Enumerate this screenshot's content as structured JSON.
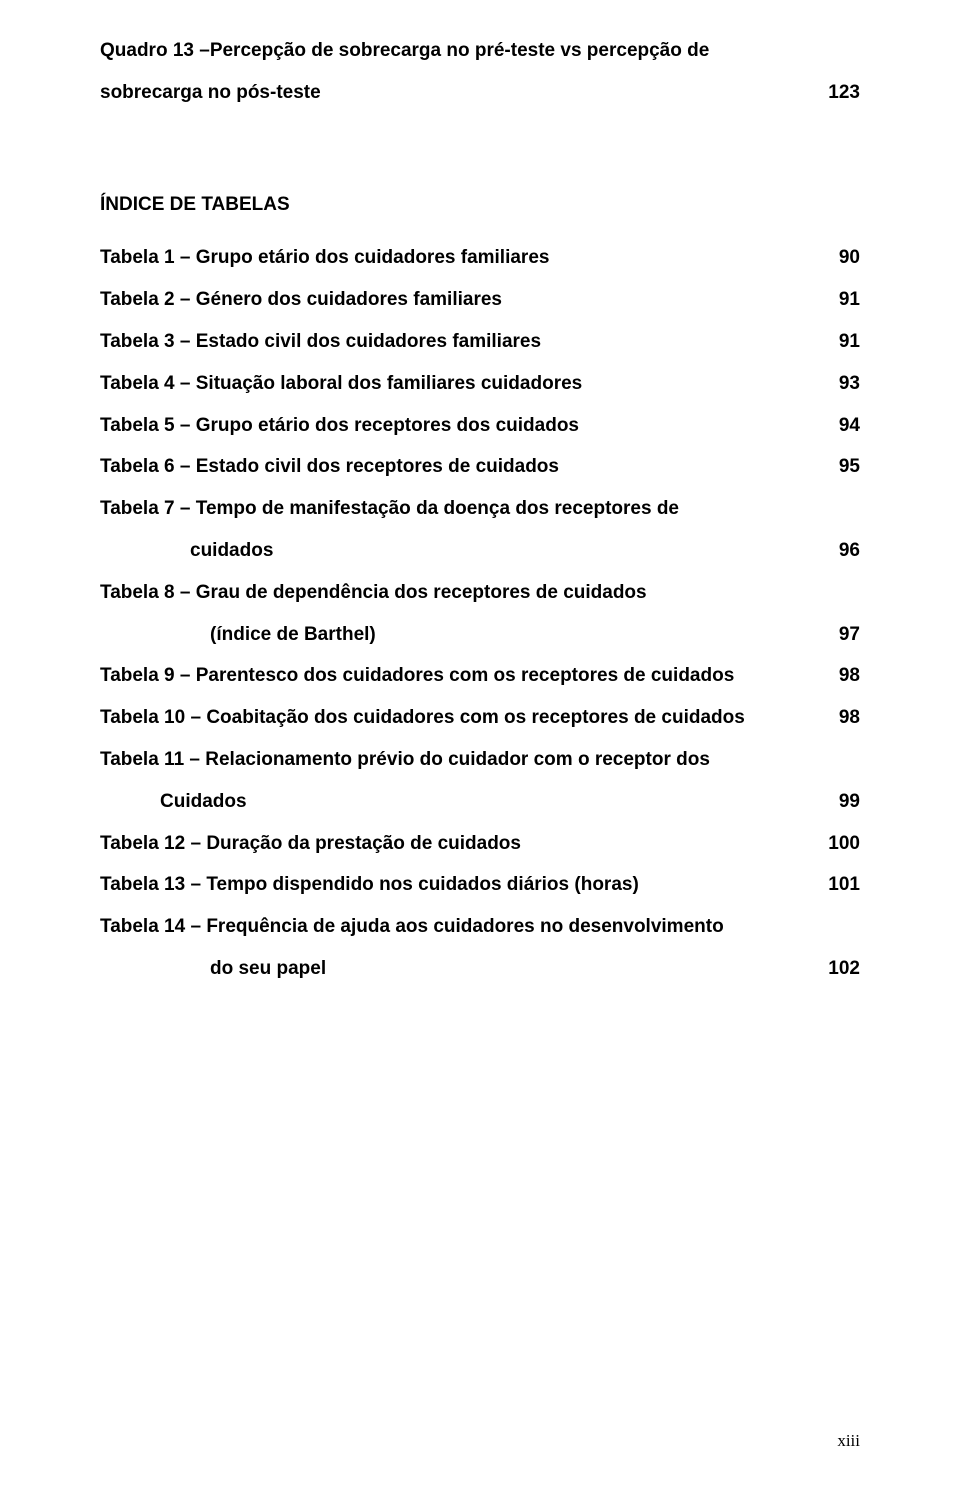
{
  "quadro13": {
    "line1": "Quadro 13 –Percepção de sobrecarga no pré-teste  vs percepção de",
    "line2": "sobrecarga no pós-teste",
    "page": "123"
  },
  "section_title": "ÍNDICE DE TABELAS",
  "tabelas": {
    "t1": {
      "label": "Tabela 1 – Grupo etário dos cuidadores familiares",
      "page": "90"
    },
    "t2": {
      "label": "Tabela 2 – Género dos cuidadores familiares",
      "page": "91"
    },
    "t3": {
      "label": "Tabela 3 – Estado civil dos cuidadores familiares",
      "page": "91"
    },
    "t4": {
      "label": "Tabela 4 – Situação laboral dos familiares cuidadores",
      "page": "93"
    },
    "t5": {
      "label": "Tabela 5 – Grupo etário dos receptores dos cuidados",
      "page": "94"
    },
    "t6": {
      "label": "Tabela 6 – Estado civil dos receptores de cuidados",
      "page": "95"
    },
    "t7": {
      "line1": "Tabela 7 – Tempo de manifestação da doença dos receptores de",
      "line2": "cuidados",
      "page": "96"
    },
    "t8": {
      "line1": "Tabela 8 – Grau de dependência dos receptores de cuidados",
      "line2": "(índice de Barthel)",
      "page": "97"
    },
    "t9": {
      "label": "Tabela 9 – Parentesco dos cuidadores com os receptores de cuidados",
      "page": "98"
    },
    "t10": {
      "label": "Tabela 10 – Coabitação dos cuidadores com os receptores de cuidados",
      "page": "98"
    },
    "t11": {
      "line1": "Tabela 11 – Relacionamento prévio do cuidador com o receptor dos",
      "line2": "Cuidados",
      "page": "99"
    },
    "t12": {
      "label": "Tabela 12 – Duração da prestação de cuidados",
      "page": "100"
    },
    "t13": {
      "label": "Tabela 13 – Tempo dispendido nos cuidados diários (horas)",
      "page": "101"
    },
    "t14": {
      "line1": "Tabela 14 – Frequência de ajuda aos cuidadores no desenvolvimento",
      "line2": "do seu papel",
      "page": "102"
    }
  },
  "footer": "xiii"
}
